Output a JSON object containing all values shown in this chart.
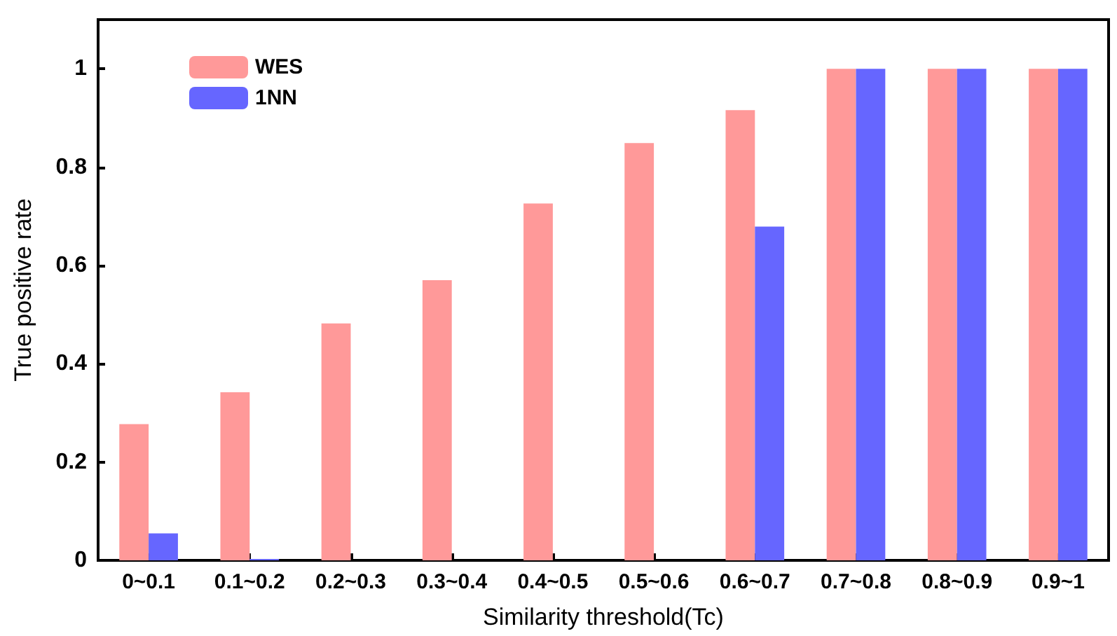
{
  "chart_data": {
    "type": "bar",
    "xlabel": "Similarity threshold(Tc)",
    "ylabel": "True positive rate",
    "categories": [
      "0~0.1",
      "0.1~0.2",
      "0.2~0.3",
      "0.3~0.4",
      "0.4~0.5",
      "0.5~0.6",
      "0.6~0.7",
      "0.7~0.8",
      "0.8~0.9",
      "0.9~1"
    ],
    "series": [
      {
        "name": "WES",
        "color": "#ff9999",
        "values": [
          0.277,
          0.342,
          0.482,
          0.57,
          0.726,
          0.849,
          0.916,
          1,
          1,
          1
        ]
      },
      {
        "name": "1NN",
        "color": "#6666ff",
        "values": [
          0.055,
          0.003,
          0,
          0,
          0,
          0,
          0.679,
          1,
          1,
          1
        ]
      }
    ],
    "ylim": [
      0,
      1.1
    ],
    "yticks": [
      0,
      0.2,
      0.4,
      0.6,
      0.8,
      1
    ],
    "grid": false,
    "legend": "top left"
  }
}
